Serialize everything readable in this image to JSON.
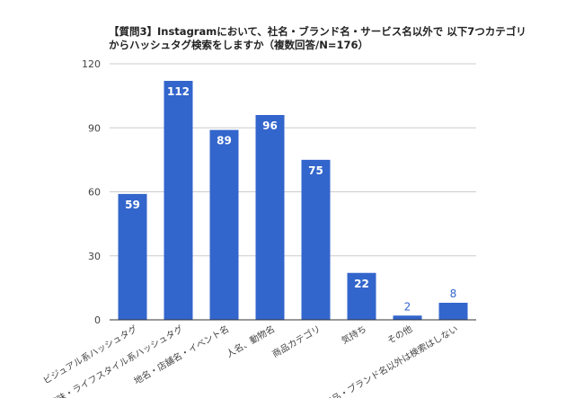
{
  "chart_data": {
    "type": "bar",
    "title_lines": [
      "【質問3】Instagramにおいて、社名・ブランド名・サービス名以外で 以下7つカテゴリ",
      "からハッシュタグ検索をしますか（複数回答/N=176）"
    ],
    "categories": [
      "ビジュアル系ハッシュタグ",
      "趣味・ライフスタイル系ハッシュタグ",
      "地名・店舗名・イベント名",
      "人名、動物名",
      "商品カテゴリ",
      "気持ち",
      "その他",
      "商品・ブランド名以外は検索はしない"
    ],
    "values": [
      59,
      112,
      89,
      96,
      75,
      22,
      2,
      8
    ],
    "data_labels": [
      "59",
      "112",
      "89",
      "96",
      "75",
      "22",
      "2",
      "8"
    ],
    "ylim": [
      0,
      120
    ],
    "yticks": [
      "0",
      "30",
      "60",
      "90",
      "120"
    ],
    "grid": true,
    "legend": "none",
    "colors": {
      "bar": "#3366cc",
      "label_inside": "#ffffff",
      "label_outside": "#3366cc",
      "grid": "#cccccc",
      "axis": "#333333",
      "tick_text": "#444444"
    }
  }
}
